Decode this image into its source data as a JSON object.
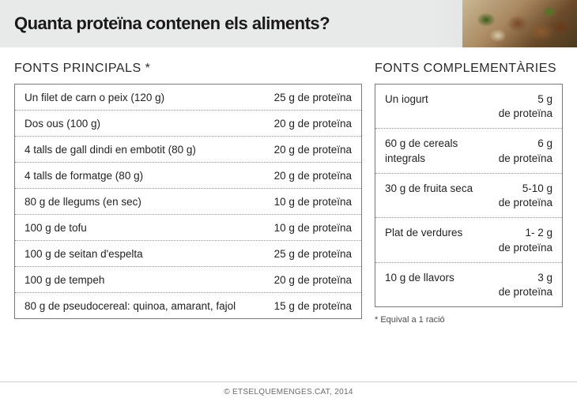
{
  "header": {
    "title": "Quanta proteïna contenen els aliments?"
  },
  "sections": {
    "main_title": "FONTS PRINCIPALS *",
    "comp_title": "FONTS COMPLEMENTÀRIES"
  },
  "main_rows": [
    {
      "food": "Un filet de carn o peix (120 g)",
      "amount": "25 g de proteïna"
    },
    {
      "food": "Dos ous (100 g)",
      "amount": "20 g de proteïna"
    },
    {
      "food": "4 talls de gall dindi en embotit (80 g)",
      "amount": "20 g de proteïna"
    },
    {
      "food": "4 talls de formatge (80 g)",
      "amount": "20 g de proteïna"
    },
    {
      "food": "80 g de llegums (en sec)",
      "amount": "10 g de proteïna"
    },
    {
      "food": "100 g de tofu",
      "amount": "10 g de proteïna"
    },
    {
      "food": "100 g de seitan d'espelta",
      "amount": "25 g de proteïna"
    },
    {
      "food": "100 g de tempeh",
      "amount": "20 g de proteïna"
    },
    {
      "food": "80 g de pseudocereal: quinoa, amarant, fajol",
      "amount": "15 g de proteïna"
    }
  ],
  "comp_rows": [
    {
      "food": "Un iogurt",
      "amount_val": "5 g",
      "amount_unit": "de proteïna"
    },
    {
      "food": "60 g de cereals integrals",
      "amount_val": "6 g",
      "amount_unit": "de proteïna"
    },
    {
      "food": "30 g de fruita seca",
      "amount_val": "5-10 g",
      "amount_unit": "de proteïna"
    },
    {
      "food": "Plat de verdures",
      "amount_val": "1- 2 g",
      "amount_unit": "de proteïna"
    },
    {
      "food": "10 g de llavors",
      "amount_val": "3 g",
      "amount_unit": "de proteïna"
    }
  ],
  "note": "* Equival a 1 ració",
  "footer": "© ETSELQUEMENGES.CAT, 2014"
}
